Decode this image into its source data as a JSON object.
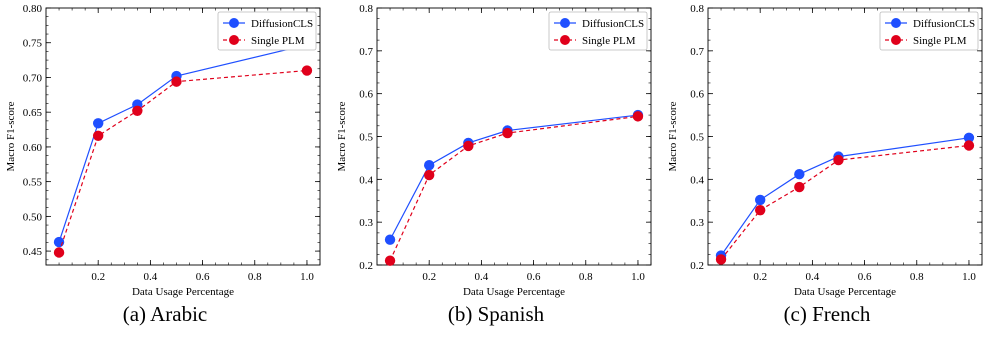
{
  "colors": {
    "diffusion": "#1f4fff",
    "single": "#e0001b"
  },
  "chart_data": [
    {
      "type": "line",
      "xlabel": "Data Usage Percentage",
      "ylabel": "Macro F1-score",
      "caption": "(a) Arabic",
      "xlim": [
        0.0,
        1.05
      ],
      "ylim": [
        0.43,
        0.8
      ],
      "xticks": [
        "0.2",
        "0.4",
        "0.6",
        "0.8",
        "1.0"
      ],
      "yticks": [
        "0.45",
        "0.50",
        "0.55",
        "0.60",
        "0.65",
        "0.70",
        "0.75",
        "0.80"
      ],
      "x": [
        0.05,
        0.2,
        0.35,
        0.5,
        1.0
      ],
      "series": [
        {
          "name": "DiffusionCLS",
          "values": [
            0.463,
            0.634,
            0.661,
            0.702,
            0.747
          ]
        },
        {
          "name": "Single PLM",
          "values": [
            0.448,
            0.616,
            0.652,
            0.694,
            0.71
          ]
        }
      ],
      "legend": "top-right"
    },
    {
      "type": "line",
      "xlabel": "Data Usage Percentage",
      "ylabel": "Macro F1-score",
      "caption": "(b) Spanish",
      "xlim": [
        0.0,
        1.05
      ],
      "ylim": [
        0.2,
        0.8
      ],
      "xticks": [
        "0.2",
        "0.4",
        "0.6",
        "0.8",
        "1.0"
      ],
      "yticks": [
        "0.2",
        "0.3",
        "0.4",
        "0.5",
        "0.6",
        "0.7",
        "0.8"
      ],
      "x": [
        0.05,
        0.2,
        0.35,
        0.5,
        1.0
      ],
      "series": [
        {
          "name": "DiffusionCLS",
          "values": [
            0.259,
            0.433,
            0.485,
            0.514,
            0.55
          ]
        },
        {
          "name": "Single PLM",
          "values": [
            0.21,
            0.41,
            0.478,
            0.508,
            0.547
          ]
        }
      ],
      "legend": "top-right"
    },
    {
      "type": "line",
      "xlabel": "Data Usage Percentage",
      "ylabel": "Macro F1-score",
      "caption": "(c) French",
      "xlim": [
        0.0,
        1.05
      ],
      "ylim": [
        0.2,
        0.8
      ],
      "xticks": [
        "0.2",
        "0.4",
        "0.6",
        "0.8",
        "1.0"
      ],
      "yticks": [
        "0.2",
        "0.3",
        "0.4",
        "0.5",
        "0.6",
        "0.7",
        "0.8"
      ],
      "x": [
        0.05,
        0.2,
        0.35,
        0.5,
        1.0
      ],
      "series": [
        {
          "name": "DiffusionCLS",
          "values": [
            0.222,
            0.352,
            0.412,
            0.453,
            0.497
          ]
        },
        {
          "name": "Single PLM",
          "values": [
            0.213,
            0.328,
            0.382,
            0.445,
            0.479
          ]
        }
      ],
      "legend": "top-right"
    }
  ]
}
